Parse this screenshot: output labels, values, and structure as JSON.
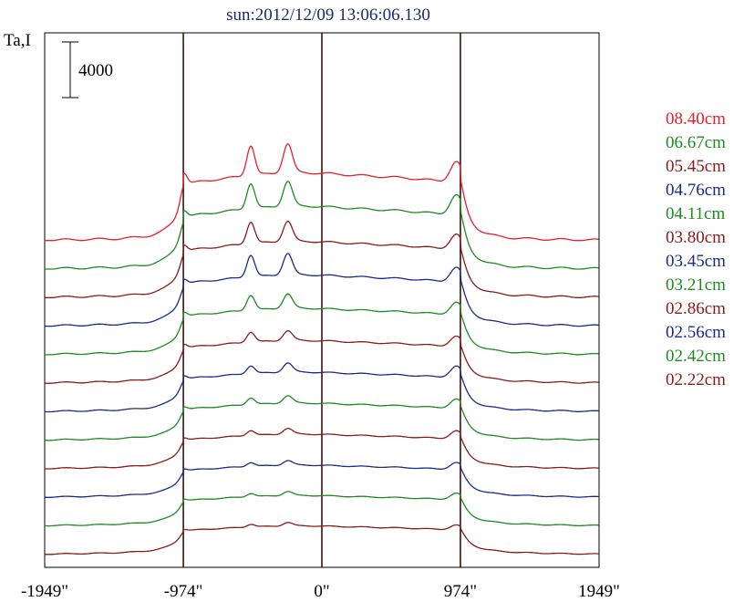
{
  "chart_data": {
    "type": "line",
    "title": "sun:2012/12/09 13:06:06.130",
    "ylabel": "Ta,I",
    "xlabel": "",
    "scale_bar_label": "4000",
    "x_ticks": [
      "-1949\"",
      "-974\"",
      "0\"",
      "974\"",
      "1949\""
    ],
    "x_tick_values": [
      -1949,
      -974,
      0,
      974,
      1949
    ],
    "xlim": [
      -1949,
      1949
    ],
    "vertical_lines_at": [
      -974,
      0,
      974
    ],
    "grid": false,
    "legend_position": "right",
    "scale_bar_value": 4000,
    "series": [
      {
        "name": "08.40cm",
        "color": "#e8202a",
        "base": 2000,
        "disk": 11100,
        "limb_peak": 2400,
        "r_limb_peak": 3900,
        "peaks": [
          5200,
          5000
        ]
      },
      {
        "name": "06.67cm",
        "color": "#1f8a1f",
        "base": 2000,
        "disk": 10300,
        "limb_peak": 1500,
        "r_limb_peak": 3800,
        "peaks": [
          4400,
          4300
        ]
      },
      {
        "name": "05.45cm",
        "color": "#8b1a1a",
        "base": 2000,
        "disk": 9200,
        "limb_peak": 1400,
        "r_limb_peak": 2900,
        "peaks": [
          3800,
          3500
        ]
      },
      {
        "name": "04.76cm",
        "color": "#1a2a8c",
        "base": 2000,
        "disk": 8400,
        "limb_peak": 1100,
        "r_limb_peak": 2800,
        "peaks": [
          3800,
          3700
        ]
      },
      {
        "name": "04.11cm",
        "color": "#1f8a1f",
        "base": 2000,
        "disk": 7600,
        "limb_peak": 1000,
        "r_limb_peak": 2400,
        "peaks": [
          2600,
          2500
        ]
      },
      {
        "name": "03.80cm",
        "color": "#8b1a1a",
        "base": 2000,
        "disk": 7000,
        "limb_peak": 900,
        "r_limb_peak": 2000,
        "peaks": [
          1800,
          1700
        ]
      },
      {
        "name": "03.45cm",
        "color": "#1a2a8c",
        "base": 2000,
        "disk": 6500,
        "limb_peak": 800,
        "r_limb_peak": 2200,
        "peaks": [
          1400,
          1600
        ]
      },
      {
        "name": "03.21cm",
        "color": "#1f8a1f",
        "base": 2000,
        "disk": 6100,
        "limb_peak": 700,
        "r_limb_peak": 1800,
        "peaks": [
          1200,
          1300
        ]
      },
      {
        "name": "02.86cm",
        "color": "#8b1a1a",
        "base": 2000,
        "disk": 5700,
        "limb_peak": 600,
        "r_limb_peak": 1600,
        "peaks": [
          900,
          1000
        ]
      },
      {
        "name": "02.56cm",
        "color": "#1a2a8c",
        "base": 2000,
        "disk": 5300,
        "limb_peak": 500,
        "r_limb_peak": 1400,
        "peaks": [
          700,
          800
        ]
      },
      {
        "name": "02.42cm",
        "color": "#1f8a1f",
        "base": 2000,
        "disk": 5000,
        "limb_peak": 450,
        "r_limb_peak": 1300,
        "peaks": [
          600,
          700
        ]
      },
      {
        "name": "02.22cm",
        "color": "#8b1a1a",
        "base": 2000,
        "disk": 4700,
        "limb_peak": 400,
        "r_limb_peak": 1000,
        "peaks": [
          500,
          600
        ]
      }
    ]
  }
}
